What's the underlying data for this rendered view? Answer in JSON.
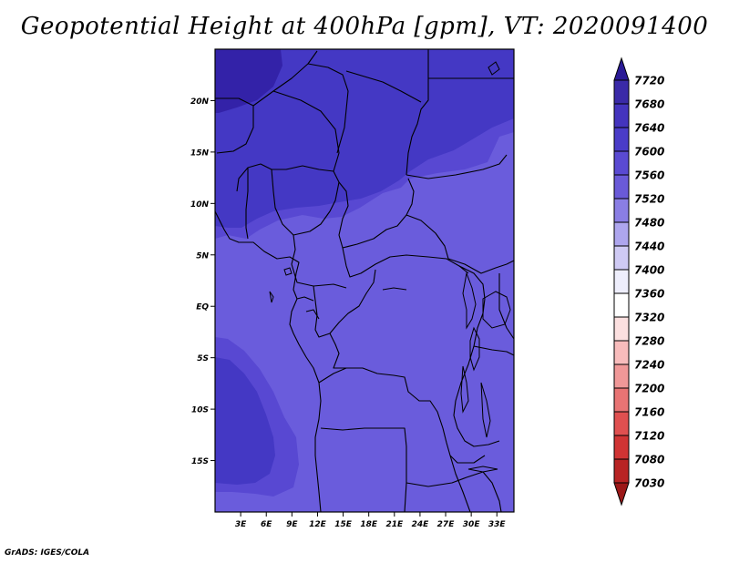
{
  "title": "Geopotential Height at 400hPa [gpm], VT: 2020091400",
  "credit": "GrADS: IGES/COLA",
  "map": {
    "lon_range": [
      0,
      35
    ],
    "lat_range": [
      -20,
      25
    ],
    "lat_ticks": [
      {
        "value": 20,
        "label": "20N"
      },
      {
        "value": 15,
        "label": "15N"
      },
      {
        "value": 10,
        "label": "10N"
      },
      {
        "value": 5,
        "label": "5N"
      },
      {
        "value": 0,
        "label": "EQ"
      },
      {
        "value": -5,
        "label": "5S"
      },
      {
        "value": -10,
        "label": "10S"
      },
      {
        "value": -15,
        "label": "15S"
      }
    ],
    "lon_ticks": [
      {
        "value": 3,
        "label": "3E"
      },
      {
        "value": 6,
        "label": "6E"
      },
      {
        "value": 9,
        "label": "9E"
      },
      {
        "value": 12,
        "label": "12E"
      },
      {
        "value": 15,
        "label": "15E"
      },
      {
        "value": 18,
        "label": "18E"
      },
      {
        "value": 21,
        "label": "21E"
      },
      {
        "value": 24,
        "label": "24E"
      },
      {
        "value": 27,
        "label": "27E"
      },
      {
        "value": 30,
        "label": "30E"
      },
      {
        "value": 33,
        "label": "33E"
      }
    ]
  },
  "colorbar": {
    "levels": [
      "7720",
      "7680",
      "7640",
      "7600",
      "7560",
      "7520",
      "7480",
      "7440",
      "7400",
      "7360",
      "7320",
      "7280",
      "7240",
      "7200",
      "7160",
      "7120",
      "7080",
      "7030"
    ],
    "colors": [
      "#2a1a96",
      "#3a2aa8",
      "#4434be",
      "#4a3cc8",
      "#5a4ad2",
      "#6a5ad8",
      "#8a7ee4",
      "#aea6ee",
      "#cfcaf4",
      "#eeeefc",
      "#ffffff",
      "#fce0e0",
      "#f8bcbc",
      "#f09898",
      "#e87474",
      "#e05050",
      "#d03434",
      "#b82424",
      "#9c1818"
    ]
  },
  "field_colors": {
    "top_left_max": "#3322a8",
    "band_7640": "#4438c4",
    "band_7600": "#5848d2",
    "band_7560": "#6a5cdc"
  }
}
